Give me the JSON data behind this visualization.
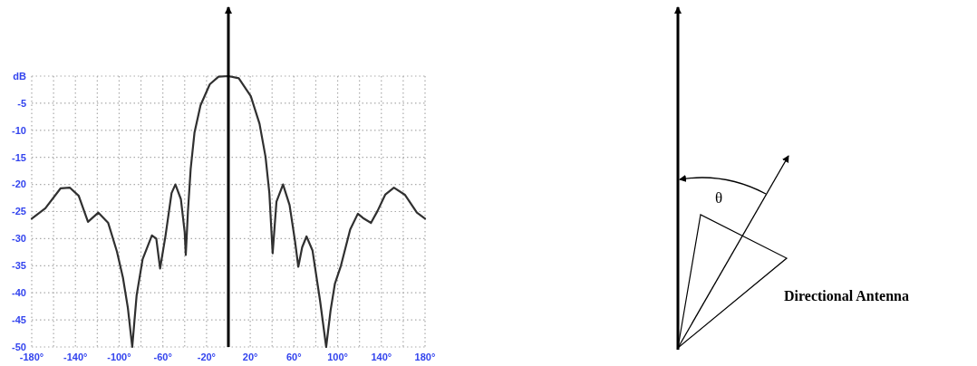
{
  "chart_data": {
    "type": "line",
    "ylabel": "dB",
    "x": [
      -180,
      -167.5,
      -153.5,
      -145,
      -137,
      -128.5,
      -119,
      -110,
      -102,
      -96.5,
      -92,
      -88,
      -84,
      -78.5,
      -70,
      -66,
      -62.5,
      -57.5,
      -52,
      -48.5,
      -43.5,
      -40,
      -39,
      -37,
      -34.5,
      -31,
      -25.5,
      -17,
      -9,
      0,
      9.5,
      20.5,
      28.5,
      34,
      37.5,
      40.5,
      44,
      50,
      56,
      61,
      64,
      67.5,
      71.5,
      77,
      84,
      89.5,
      93.5,
      97.5,
      103,
      111.5,
      118.5,
      124,
      130.5,
      136.5,
      143.5,
      151.5,
      161.5,
      172.5,
      180
    ],
    "series": [
      {
        "color": "#303030",
        "values": [
          -26.3,
          -24.4,
          -20.7,
          -20.6,
          -22.1,
          -26.9,
          -25.2,
          -27.1,
          -32.4,
          -37.2,
          -42.8,
          -50,
          -40.5,
          -33.8,
          -29.4,
          -30,
          -35.5,
          -29.4,
          -21.6,
          -20,
          -22.7,
          -28.8,
          -33,
          -24.9,
          -17.1,
          -10.4,
          -5.4,
          -1.5,
          -0.1,
          0,
          -0.4,
          -3.7,
          -8.8,
          -14.9,
          -21.6,
          -32.7,
          -23.2,
          -20,
          -23.8,
          -30.5,
          -35.2,
          -31.6,
          -29.6,
          -32.2,
          -41.6,
          -50,
          -43.3,
          -38.3,
          -35,
          -28.3,
          -25.4,
          -26.3,
          -27.1,
          -24.9,
          -21.9,
          -20.6,
          -21.9,
          -25.2,
          -26.3
        ]
      }
    ],
    "xlim": [
      -180,
      180
    ],
    "xticks": [
      {
        "value": -180,
        "label": "-180°"
      },
      {
        "value": -160,
        "label": null
      },
      {
        "value": -140,
        "label": "-140°"
      },
      {
        "value": -120,
        "label": null
      },
      {
        "value": -100,
        "label": "-100°"
      },
      {
        "value": -80,
        "label": null
      },
      {
        "value": -60,
        "label": "-60°"
      },
      {
        "value": -40,
        "label": null
      },
      {
        "value": -20,
        "label": "-20°"
      },
      {
        "value": 0,
        "label": null
      },
      {
        "value": 20,
        "label": "20°"
      },
      {
        "value": 40,
        "label": null
      },
      {
        "value": 60,
        "label": "60°"
      },
      {
        "value": 80,
        "label": null
      },
      {
        "value": 100,
        "label": "100°"
      },
      {
        "value": 120,
        "label": null
      },
      {
        "value": 140,
        "label": "140°"
      },
      {
        "value": 160,
        "label": null
      },
      {
        "value": 180,
        "label": "180°"
      }
    ],
    "ylim": [
      -50,
      0
    ],
    "yticks": [
      {
        "value": 0,
        "label": null
      },
      -5,
      -10,
      -15,
      -20,
      -25,
      -30,
      -35,
      -40,
      -45,
      -50
    ],
    "grid": true,
    "ref_lines": [
      {
        "axis": "x",
        "value": 0,
        "color": "#000000"
      }
    ],
    "annotations": [
      "θ",
      "Directional Antenna"
    ]
  }
}
